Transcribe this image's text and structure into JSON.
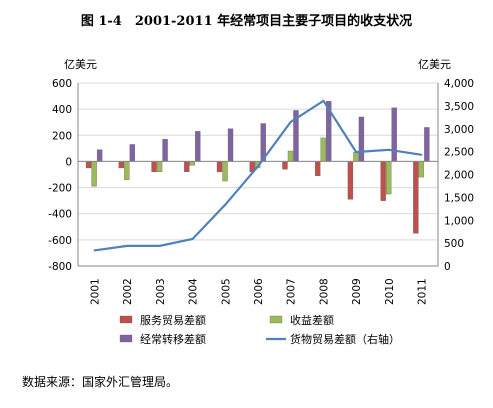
{
  "chart_data": {
    "type": "bar",
    "title": "图 1-4　2001-2011 年经常项目主要子项目的收支状况",
    "left_axis_label": "亿美元",
    "right_axis_label": "亿美元",
    "categories": [
      "2001",
      "2002",
      "2003",
      "2004",
      "2005",
      "2006",
      "2007",
      "2008",
      "2009",
      "2010",
      "2011"
    ],
    "left_axis": {
      "min": -800,
      "max": 600,
      "ticks": [
        "-800",
        "-600",
        "-400",
        "-200",
        "0",
        "200",
        "400",
        "600"
      ]
    },
    "right_axis": {
      "min": 0,
      "max": 4000,
      "ticks": [
        "0",
        "500",
        "1,000",
        "1,500",
        "2,000",
        "2,500",
        "3,000",
        "3,500",
        "4,000"
      ]
    },
    "series": [
      {
        "name": "服务贸易差额",
        "type": "bar",
        "axis": "left",
        "color": "#c0504d",
        "values": [
          -50,
          -50,
          -80,
          -80,
          -80,
          -80,
          -60,
          -110,
          -290,
          -300,
          -550
        ]
      },
      {
        "name": "收益差额",
        "type": "bar",
        "axis": "left",
        "color": "#9bbb59",
        "values": [
          -190,
          -140,
          -80,
          -30,
          -150,
          -50,
          80,
          180,
          70,
          -250,
          -120
        ]
      },
      {
        "name": "经常转移差额",
        "type": "bar",
        "axis": "left",
        "color": "#8064a2",
        "values": [
          90,
          130,
          170,
          230,
          250,
          290,
          390,
          460,
          340,
          410,
          260
        ]
      },
      {
        "name": "货物贸易差额（右轴）",
        "type": "line",
        "axis": "right",
        "color": "#4f81bd",
        "values": [
          340,
          440,
          440,
          590,
          1340,
          2180,
          3150,
          3610,
          2490,
          2540,
          2430
        ]
      }
    ],
    "legend_position": "bottom"
  },
  "source_note": "数据来源：国家外汇管理局。"
}
